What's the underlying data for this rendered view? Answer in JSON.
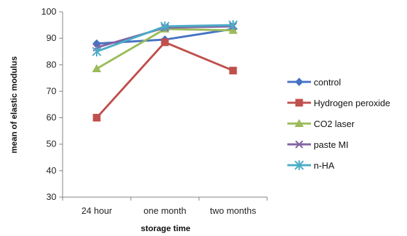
{
  "chart_data": {
    "type": "line",
    "categories": [
      "24 hour",
      "one month",
      "two months"
    ],
    "xlabel": "storage time",
    "ylabel": "mean of elastic modulus",
    "ylim": [
      30,
      100
    ],
    "yticks": [
      30,
      40,
      50,
      60,
      70,
      80,
      90,
      100
    ],
    "grid": false,
    "legend_position": "right",
    "series": [
      {
        "name": "control",
        "color": "#4472C4",
        "marker": "diamond",
        "values": [
          88.0,
          89.5,
          93.5
        ]
      },
      {
        "name": "Hydrogen peroxide",
        "color": "#C0504D",
        "marker": "square",
        "values": [
          60.0,
          88.5,
          77.8
        ]
      },
      {
        "name": "CO2 laser",
        "color": "#9BBB59",
        "marker": "triangle",
        "values": [
          78.5,
          93.5,
          93.0
        ]
      },
      {
        "name": "paste MI",
        "color": "#8064A2",
        "marker": "x",
        "values": [
          86.5,
          94.0,
          94.5
        ]
      },
      {
        "name": "n-HA",
        "color": "#4BACC6",
        "marker": "star",
        "values": [
          85.0,
          94.5,
          95.0
        ]
      }
    ]
  }
}
